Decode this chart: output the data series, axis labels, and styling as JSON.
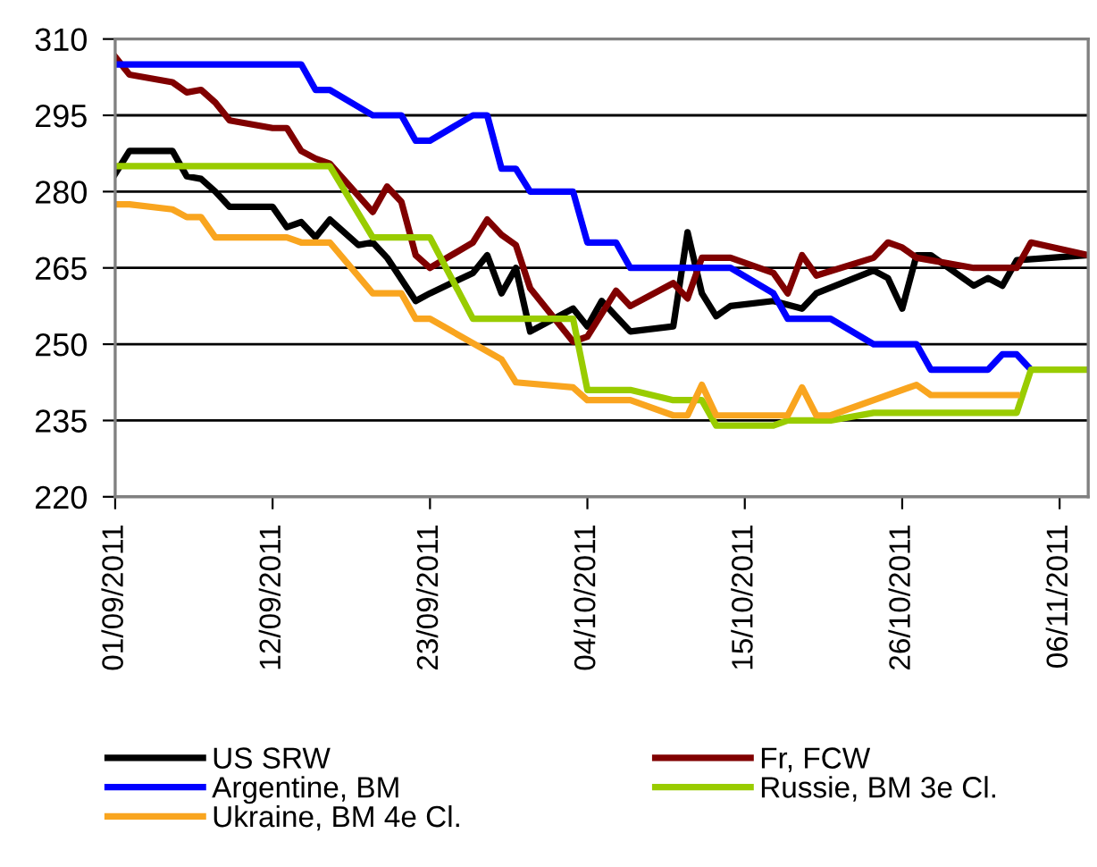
{
  "chart_data": {
    "type": "line",
    "xlim": [
      "2011-09-01",
      "2011-11-08"
    ],
    "xticks": [
      {
        "value": "2011-09-01",
        "label": "01/09/2011"
      },
      {
        "value": "2011-09-12",
        "label": "12/09/2011"
      },
      {
        "value": "2011-09-23",
        "label": "23/09/2011"
      },
      {
        "value": "2011-10-04",
        "label": "04/10/2011"
      },
      {
        "value": "2011-10-15",
        "label": "15/10/2011"
      },
      {
        "value": "2011-10-26",
        "label": "26/10/2011"
      },
      {
        "value": "2011-11-06",
        "label": "06/11/2011"
      }
    ],
    "ylim": [
      220,
      310
    ],
    "yticks": [
      220,
      235,
      250,
      265,
      280,
      295,
      310
    ],
    "grid": "y",
    "legend": "bottom",
    "line_style": "solid",
    "marker": "none",
    "series": [
      {
        "name": "US SRW",
        "color": "#000000",
        "x": [
          "2011-09-01",
          "2011-09-02",
          "2011-09-05",
          "2011-09-06",
          "2011-09-07",
          "2011-09-08",
          "2011-09-09",
          "2011-09-12",
          "2011-09-13",
          "2011-09-14",
          "2011-09-15",
          "2011-09-16",
          "2011-09-18",
          "2011-09-19",
          "2011-09-20",
          "2011-09-22",
          "2011-09-23",
          "2011-09-26",
          "2011-09-27",
          "2011-09-28",
          "2011-09-29",
          "2011-09-30",
          "2011-10-01",
          "2011-10-02",
          "2011-10-03",
          "2011-10-04",
          "2011-10-05",
          "2011-10-07",
          "2011-10-10",
          "2011-10-11",
          "2011-10-12",
          "2011-10-13",
          "2011-10-14",
          "2011-10-17",
          "2011-10-19",
          "2011-10-20",
          "2011-10-24",
          "2011-10-25",
          "2011-10-26",
          "2011-10-27",
          "2011-10-28",
          "2011-10-31",
          "2011-11-01",
          "2011-11-02",
          "2011-11-03",
          "2011-11-08"
        ],
        "values": [
          283.5,
          288,
          288,
          283,
          282.5,
          280,
          277,
          277,
          273,
          274,
          271,
          274.5,
          269.5,
          270,
          267,
          258.5,
          260,
          264,
          267.5,
          260,
          265,
          252.5,
          254,
          255.5,
          257,
          253.5,
          258.5,
          252.5,
          253.5,
          272,
          260,
          255.5,
          257.5,
          258.5,
          257,
          260,
          264.5,
          263,
          257,
          267.5,
          267.5,
          261.5,
          263,
          261.5,
          266.5,
          267.5
        ]
      },
      {
        "name": "Fr, FCW",
        "color": "#800000",
        "x": [
          "2011-09-01",
          "2011-09-02",
          "2011-09-05",
          "2011-09-06",
          "2011-09-07",
          "2011-09-08",
          "2011-09-09",
          "2011-09-12",
          "2011-09-13",
          "2011-09-14",
          "2011-09-15",
          "2011-09-16",
          "2011-09-19",
          "2011-09-20",
          "2011-09-21",
          "2011-09-22",
          "2011-09-23",
          "2011-09-26",
          "2011-09-27",
          "2011-09-28",
          "2011-09-29",
          "2011-09-30",
          "2011-10-03",
          "2011-10-04",
          "2011-10-06",
          "2011-10-07",
          "2011-10-10",
          "2011-10-11",
          "2011-10-12",
          "2011-10-14",
          "2011-10-17",
          "2011-10-18",
          "2011-10-19",
          "2011-10-20",
          "2011-10-24",
          "2011-10-25",
          "2011-10-26",
          "2011-10-27",
          "2011-10-31",
          "2011-11-03",
          "2011-11-04",
          "2011-11-08"
        ],
        "values": [
          306.5,
          303,
          301.5,
          299.5,
          300,
          297.5,
          294,
          292.5,
          292.5,
          288,
          286.5,
          285.5,
          276,
          281,
          278,
          267.5,
          265,
          270,
          274.5,
          271.5,
          269.5,
          261,
          250.5,
          251.5,
          260.5,
          257.5,
          262,
          259,
          267,
          267,
          264,
          260,
          267.5,
          263.5,
          267,
          270,
          269,
          267,
          265,
          265,
          270,
          267.5
        ]
      },
      {
        "name": "Argentine, BM",
        "color": "#0000ff",
        "x": [
          "2011-09-01",
          "2011-09-14",
          "2011-09-15",
          "2011-09-16",
          "2011-09-19",
          "2011-09-21",
          "2011-09-22",
          "2011-09-23",
          "2011-09-26",
          "2011-09-27",
          "2011-09-28",
          "2011-09-29",
          "2011-09-30",
          "2011-10-03",
          "2011-10-04",
          "2011-10-06",
          "2011-10-07",
          "2011-10-14",
          "2011-10-17",
          "2011-10-18",
          "2011-10-21",
          "2011-10-24",
          "2011-10-27",
          "2011-10-28",
          "2011-11-01",
          "2011-11-02",
          "2011-11-03",
          "2011-11-04"
        ],
        "values": [
          305,
          305,
          300,
          300,
          295,
          295,
          290,
          290,
          295,
          295,
          284.5,
          284.5,
          280,
          280,
          270,
          270,
          265,
          265,
          260,
          255,
          255,
          250,
          250,
          245,
          245,
          248,
          248,
          245
        ]
      },
      {
        "name": "Russie, BM 3e Cl.",
        "color": "#99cc00",
        "x": [
          "2011-09-01",
          "2011-09-16",
          "2011-09-19",
          "2011-09-23",
          "2011-09-26",
          "2011-10-03",
          "2011-10-04",
          "2011-10-07",
          "2011-10-10",
          "2011-10-12",
          "2011-10-13",
          "2011-10-17",
          "2011-10-18",
          "2011-10-21",
          "2011-10-24",
          "2011-11-03",
          "2011-11-04",
          "2011-11-08"
        ],
        "values": [
          285,
          285,
          271,
          271,
          255,
          255,
          241,
          241,
          239,
          239,
          234,
          234,
          235,
          235,
          236.5,
          236.5,
          245,
          245
        ]
      },
      {
        "name": "Ukraine, BM 4e Cl.",
        "color": "#f9a51f",
        "x": [
          "2011-09-01",
          "2011-09-02",
          "2011-09-05",
          "2011-09-06",
          "2011-09-07",
          "2011-09-08",
          "2011-09-13",
          "2011-09-14",
          "2011-09-16",
          "2011-09-19",
          "2011-09-21",
          "2011-09-22",
          "2011-09-23",
          "2011-09-28",
          "2011-09-29",
          "2011-10-03",
          "2011-10-04",
          "2011-10-07",
          "2011-10-10",
          "2011-10-11",
          "2011-10-12",
          "2011-10-13",
          "2011-10-18",
          "2011-10-19",
          "2011-10-20",
          "2011-10-21",
          "2011-10-27",
          "2011-10-28",
          "2011-11-03"
        ],
        "values": [
          277.5,
          277.5,
          276.5,
          275,
          275,
          271,
          271,
          270,
          270,
          260,
          260,
          255,
          255,
          247,
          242.5,
          241.5,
          239,
          239,
          236,
          236,
          242,
          236,
          236,
          241.5,
          236,
          236,
          242,
          240,
          240
        ]
      }
    ]
  }
}
